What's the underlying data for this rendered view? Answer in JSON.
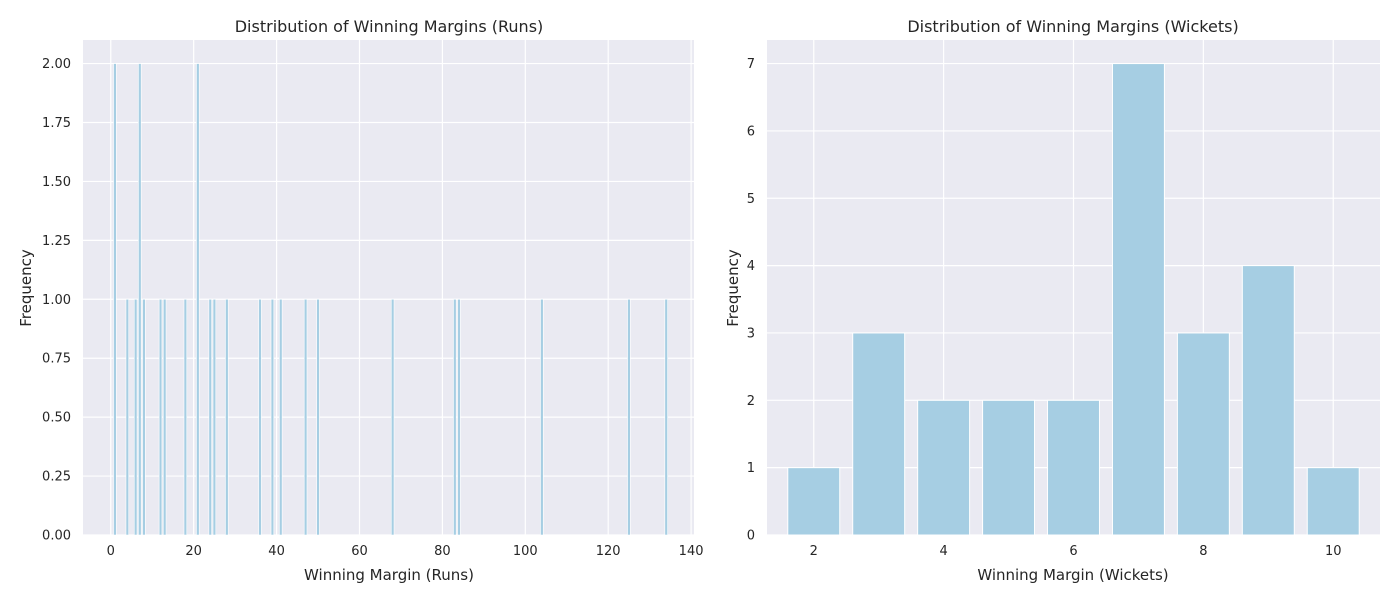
{
  "chart_data": [
    {
      "type": "bar",
      "title": "Distribution of Winning Margins (Runs)",
      "xlabel": "Winning Margin (Runs)",
      "ylabel": "Frequency",
      "xlim": [
        -6.7,
        140.7
      ],
      "ylim": [
        0,
        2.1
      ],
      "xticks": [
        0,
        20,
        40,
        60,
        80,
        100,
        120,
        140
      ],
      "xtick_labels": [
        "0",
        "20",
        "40",
        "60",
        "80",
        "100",
        "120",
        "140"
      ],
      "yticks": [
        0,
        0.25,
        0.5,
        0.75,
        1.0,
        1.25,
        1.5,
        1.75,
        2.0
      ],
      "ytick_labels": [
        "0.00",
        "0.25",
        "0.50",
        "0.75",
        "1.00",
        "1.25",
        "1.50",
        "1.75",
        "2.00"
      ],
      "bin_width": 0.67,
      "grid": true,
      "color": "#a6cee3",
      "x": [
        1,
        4,
        6,
        7,
        8,
        12,
        13,
        18,
        21,
        24,
        25,
        28,
        36,
        39,
        41,
        47,
        50,
        68,
        83,
        84,
        104,
        125,
        134
      ],
      "values": [
        2,
        1,
        1,
        2,
        1,
        1,
        1,
        1,
        2,
        1,
        1,
        1,
        1,
        1,
        1,
        1,
        1,
        1,
        1,
        1,
        1,
        1,
        1
      ]
    },
    {
      "type": "bar",
      "title": "Distribution of Winning Margins (Wickets)",
      "xlabel": "Winning Margin (Wickets)",
      "ylabel": "Frequency",
      "xlim": [
        1.28,
        10.72
      ],
      "ylim": [
        0,
        7.35
      ],
      "xticks": [
        2,
        4,
        6,
        8,
        10
      ],
      "xtick_labels": [
        "2",
        "4",
        "6",
        "8",
        "10"
      ],
      "yticks": [
        0,
        1,
        2,
        3,
        4,
        5,
        6,
        7
      ],
      "ytick_labels": [
        "0",
        "1",
        "2",
        "3",
        "4",
        "5",
        "6",
        "7"
      ],
      "bin_width": 0.8,
      "grid": true,
      "color": "#a6cee3",
      "x": [
        2,
        3,
        4,
        5,
        6,
        7,
        8,
        9,
        10
      ],
      "values": [
        1,
        3,
        2,
        2,
        2,
        7,
        3,
        4,
        1
      ]
    }
  ]
}
